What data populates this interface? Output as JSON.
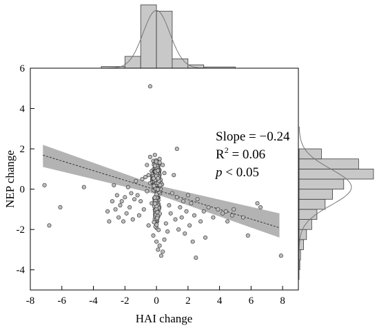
{
  "chart_data": {
    "type": "scatter",
    "title": "",
    "xlabel": "HAI change",
    "ylabel": "NEP change",
    "xlim": [
      -8,
      9
    ],
    "ylim": [
      -5,
      6
    ],
    "x_ticks": [
      -8,
      -6,
      -4,
      -2,
      0,
      2,
      4,
      6,
      8
    ],
    "y_ticks": [
      -4,
      -2,
      0,
      2,
      4,
      6
    ],
    "x_tick_labels": [
      "-8",
      "-6",
      "-4",
      "-2",
      "0",
      "2",
      "4",
      "6",
      "8"
    ],
    "y_tick_labels": [
      "-4",
      "-2",
      "0",
      "2",
      "4",
      "6"
    ],
    "annotations": {
      "slope": "Slope = −0.24",
      "r2_prefix": "R",
      "r2_sup": "2",
      "r2_rest": " = 0.06",
      "p_italic": "p",
      "p_rest": " < 0.05"
    },
    "regression": {
      "x_range": [
        -7.2,
        7.8
      ],
      "slope": -0.24,
      "intercept": -0.04,
      "ci_upper": [
        [
          -7.2,
          2.2
        ],
        [
          0,
          0.2
        ],
        [
          7.8,
          -1.2
        ]
      ],
      "ci_lower": [
        [
          -7.2,
          1.1
        ],
        [
          0,
          -0.25
        ],
        [
          7.8,
          -2.4
        ]
      ]
    },
    "points": [
      [
        -0.4,
        5.1
      ],
      [
        1.3,
        2.0
      ],
      [
        -7.1,
        0.2
      ],
      [
        -6.8,
        -1.8
      ],
      [
        -6.1,
        -0.9
      ],
      [
        -4.6,
        0.1
      ],
      [
        -3.1,
        -1.1
      ],
      [
        -3.0,
        -1.6
      ],
      [
        -2.8,
        -0.6
      ],
      [
        -2.7,
        0.2
      ],
      [
        -2.6,
        -1.0
      ],
      [
        -2.5,
        -0.3
      ],
      [
        -2.4,
        -1.4
      ],
      [
        -2.3,
        -0.8
      ],
      [
        -2.2,
        -0.6
      ],
      [
        -2.1,
        -1.6
      ],
      [
        -2.0,
        -0.4
      ],
      [
        -1.9,
        -1.2
      ],
      [
        -1.8,
        0.1
      ],
      [
        -1.7,
        -0.9
      ],
      [
        -1.6,
        -0.2
      ],
      [
        -1.5,
        -1.5
      ],
      [
        -1.4,
        -0.5
      ],
      [
        -1.3,
        0.4
      ],
      [
        -1.2,
        -0.3
      ],
      [
        -1.1,
        -1.3
      ],
      [
        -1.0,
        -0.6
      ],
      [
        -0.9,
        0.5
      ],
      [
        -0.8,
        -1.0
      ],
      [
        -0.7,
        0.6
      ],
      [
        -0.6,
        -0.1
      ],
      [
        -0.5,
        -1.8
      ],
      [
        -0.4,
        0.3
      ],
      [
        -0.3,
        -0.7
      ],
      [
        -0.2,
        -2.3
      ],
      [
        -0.1,
        -0.4
      ],
      [
        0.0,
        -2.6
      ],
      [
        0.1,
        -3.0
      ],
      [
        0.2,
        -2.8
      ],
      [
        0.3,
        -3.3
      ],
      [
        0.4,
        -3.1
      ],
      [
        0.5,
        -2.5
      ],
      [
        0.6,
        -1.7
      ],
      [
        0.7,
        -2.1
      ],
      [
        0.8,
        -0.8
      ],
      [
        0.9,
        -1.2
      ],
      [
        1.0,
        -0.2
      ],
      [
        1.1,
        0.7
      ],
      [
        1.2,
        -1.5
      ],
      [
        1.3,
        -0.4
      ],
      [
        1.4,
        -2.0
      ],
      [
        1.5,
        -0.9
      ],
      [
        1.6,
        -1.4
      ],
      [
        1.7,
        -0.6
      ],
      [
        1.8,
        -2.2
      ],
      [
        1.9,
        -1.1
      ],
      [
        2.0,
        -0.3
      ],
      [
        2.1,
        -1.8
      ],
      [
        2.2,
        -0.7
      ],
      [
        2.3,
        -2.6
      ],
      [
        2.4,
        -1.3
      ],
      [
        2.5,
        -3.4
      ],
      [
        2.6,
        -0.5
      ],
      [
        2.8,
        -1.6
      ],
      [
        3.0,
        -1.1
      ],
      [
        3.1,
        -2.4
      ],
      [
        3.3,
        -0.9
      ],
      [
        3.6,
        -1.4
      ],
      [
        3.9,
        -1.0
      ],
      [
        4.2,
        -1.2
      ],
      [
        4.4,
        -1.1
      ],
      [
        4.5,
        -1.6
      ],
      [
        4.8,
        -1.3
      ],
      [
        4.9,
        -1.0
      ],
      [
        5.5,
        -1.4
      ],
      [
        5.8,
        -2.3
      ],
      [
        6.4,
        -0.7
      ],
      [
        6.6,
        -0.9
      ],
      [
        7.9,
        -3.3
      ],
      [
        -0.6,
        1.2
      ],
      [
        -0.4,
        1.6
      ],
      [
        -0.3,
        0.9
      ],
      [
        -0.2,
        1.4
      ],
      [
        0.0,
        1.0
      ],
      [
        0.2,
        1.5
      ],
      [
        0.4,
        1.2
      ],
      [
        0.5,
        0.8
      ],
      [
        -0.1,
        1.7
      ],
      [
        0.1,
        0.6
      ],
      [
        -0.5,
        0.7
      ]
    ],
    "top_histogram": {
      "bin_edges": [
        -3.5,
        -2.0,
        -1.0,
        0.0,
        1.0,
        2.0,
        3.0,
        5.0
      ],
      "counts": [
        4,
        28,
        150,
        135,
        22,
        8,
        3
      ]
    },
    "right_histogram": {
      "bin_edges": [
        -4.0,
        -3.5,
        -3.0,
        -2.5,
        -2.0,
        -1.5,
        -1.0,
        -0.5,
        0.0,
        0.5,
        1.0,
        1.5,
        2.0
      ],
      "counts": [
        1,
        2,
        6,
        10,
        17,
        24,
        35,
        45,
        60,
        100,
        80,
        30
      ]
    }
  }
}
